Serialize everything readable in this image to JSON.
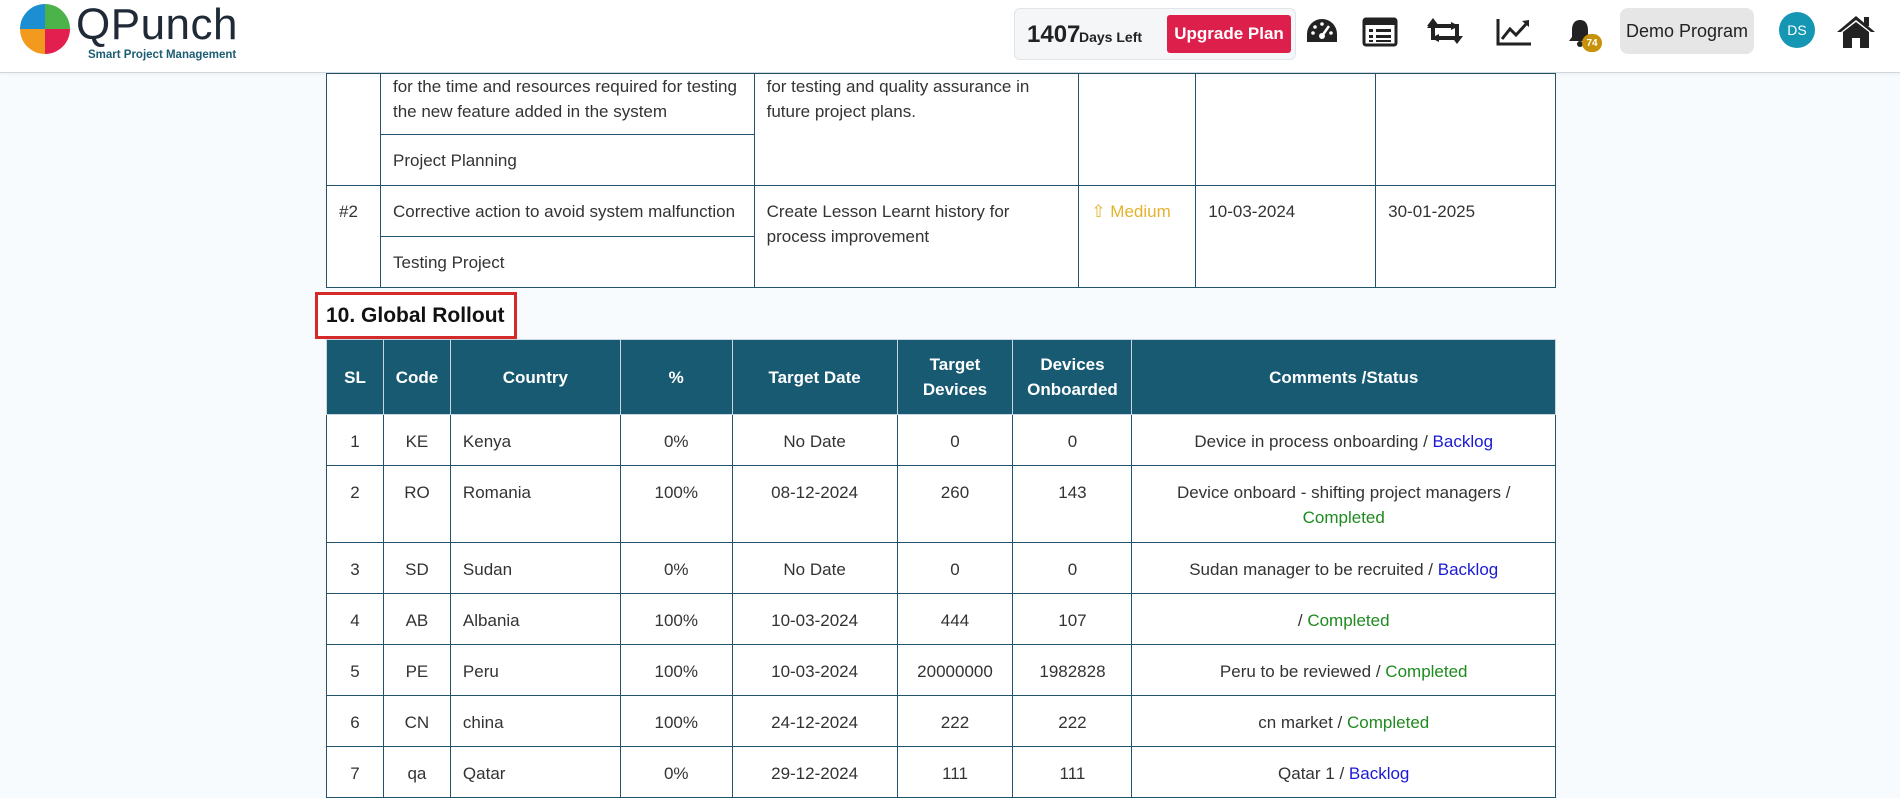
{
  "header": {
    "brand_name": "QPunch",
    "brand_tagline": "Smart Project Management",
    "days_left_value": "1407",
    "days_left_label": "Days Left",
    "upgrade_label": "Upgrade Plan",
    "notification_count": "74",
    "program_label": "Demo Program",
    "avatar_initials": "DS",
    "icons": [
      "dashboard-icon",
      "list-icon",
      "retweet-icon",
      "chart-line-icon",
      "bell-icon",
      "home-icon"
    ],
    "colors": {
      "upgrade": "#dc1f4b",
      "avatar": "#1597b3",
      "badge": "#c8910a"
    }
  },
  "lessons": {
    "row1": {
      "desc_tail": "for the time and resources required for testing the new feature added in the system",
      "action_tail": "for testing and quality assurance in future project plans.",
      "project": "Project Planning"
    },
    "row2": {
      "id": "#2",
      "description": "Corrective action to avoid system malfunction",
      "action": "Create Lesson Learnt history for process improvement",
      "priority": "⇧ Medium",
      "start_date": "10-03-2024",
      "end_date": "30-01-2025",
      "project": "Testing Project"
    }
  },
  "rollout": {
    "title": "10. Global Rollout",
    "columns": [
      "SL",
      "Code",
      "Country",
      "%",
      "Target Date",
      "Target Devices",
      "Devices Onboarded",
      "Comments /Status"
    ],
    "rows": [
      {
        "sl": "1",
        "code": "KE",
        "country": "Kenya",
        "pct": "0%",
        "date": "No Date",
        "target": "0",
        "onboarded": "0",
        "comment": "Device in process onboarding / ",
        "status": "Backlog"
      },
      {
        "sl": "2",
        "code": "RO",
        "country": "Romania",
        "pct": "100%",
        "date": "08-12-2024",
        "target": "260",
        "onboarded": "143",
        "comment": "Device onboard - shifting project managers / ",
        "status": "Completed"
      },
      {
        "sl": "3",
        "code": "SD",
        "country": "Sudan",
        "pct": "0%",
        "date": "No Date",
        "target": "0",
        "onboarded": "0",
        "comment": "Sudan manager to be recruited / ",
        "status": "Backlog"
      },
      {
        "sl": "4",
        "code": "AB",
        "country": "Albania",
        "pct": "100%",
        "date": "10-03-2024",
        "target": "444",
        "onboarded": "107",
        "comment": "/ ",
        "status": "Completed"
      },
      {
        "sl": "5",
        "code": "PE",
        "country": "Peru",
        "pct": "100%",
        "date": "10-03-2024",
        "target": "20000000",
        "onboarded": "1982828",
        "comment": "Peru to be reviewed / ",
        "status": "Completed"
      },
      {
        "sl": "6",
        "code": "CN",
        "country": "china",
        "pct": "100%",
        "date": "24-12-2024",
        "target": "222",
        "onboarded": "222",
        "comment": "cn market / ",
        "status": "Completed"
      },
      {
        "sl": "7",
        "code": "qa",
        "country": "Qatar",
        "pct": "0%",
        "date": "29-12-2024",
        "target": "111",
        "onboarded": "111",
        "comment": "Qatar 1 / ",
        "status": "Backlog"
      }
    ],
    "status_colors": {
      "Backlog": "#1a1ad6",
      "Completed": "#1f8a1f"
    }
  }
}
